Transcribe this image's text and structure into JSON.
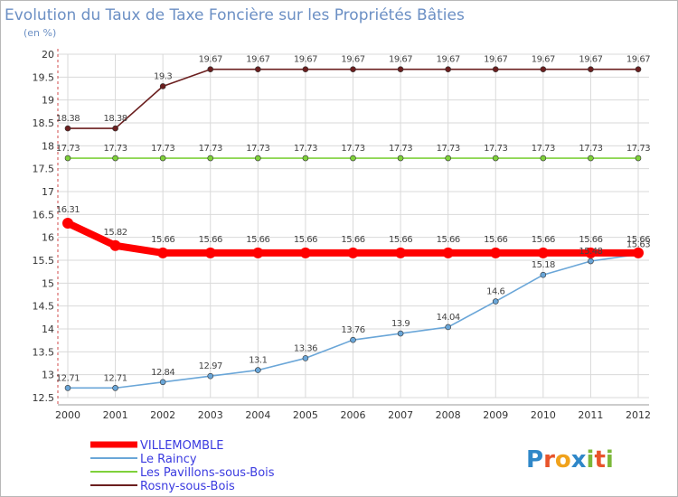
{
  "chart_data": {
    "type": "line",
    "title": "Evolution du Taux de Taxe Foncière sur les Propriétés Bâties",
    "unit_label": "(en %)",
    "ylim": [
      12.5,
      20
    ],
    "yticks": [
      "20",
      "19.5",
      "19",
      "18.5",
      "18",
      "17.5",
      "17",
      "16.5",
      "16",
      "15.5",
      "15",
      "14.5",
      "14",
      "13.5",
      "13",
      "12.5"
    ],
    "x": [
      "2000",
      "2001",
      "2002",
      "2003",
      "2004",
      "2005",
      "2006",
      "2007",
      "2008",
      "2009",
      "2010",
      "2011",
      "2012"
    ],
    "grid": true,
    "legend_position": "bottom-left",
    "series": [
      {
        "name": "Rosny-sous-Bois",
        "color": "#6b1f1f",
        "values": [
          18.38,
          18.38,
          19.3,
          19.67,
          19.67,
          19.67,
          19.67,
          19.67,
          19.67,
          19.67,
          19.67,
          19.67,
          19.67
        ],
        "labels": [
          "18.38",
          "18.38",
          "19.3",
          "19.67",
          "19.67",
          "19.67",
          "19.67",
          "19.67",
          "19.67",
          "19.67",
          "19.67",
          "19.67",
          "19.67"
        ]
      },
      {
        "name": "Les Pavillons-sous-Bois",
        "color": "#7fd13b",
        "values": [
          17.73,
          17.73,
          17.73,
          17.73,
          17.73,
          17.73,
          17.73,
          17.73,
          17.73,
          17.73,
          17.73,
          17.73,
          17.73
        ],
        "labels": [
          "17.73",
          "17.73",
          "17.73",
          "17.73",
          "17.73",
          "17.73",
          "17.73",
          "17.73",
          "17.73",
          "17.73",
          "17.73",
          "17.73",
          "17.73"
        ]
      },
      {
        "name": "Le Raincy",
        "color": "#6aa6d8",
        "values": [
          12.71,
          12.71,
          12.84,
          12.97,
          13.1,
          13.36,
          13.76,
          13.9,
          14.04,
          14.6,
          15.18,
          15.48,
          15.63
        ],
        "labels": [
          "12.71",
          "12.71",
          "12.84",
          "12.97",
          "13.1",
          "13.36",
          "13.76",
          "13.9",
          "14.04",
          "14.6",
          "15.18",
          "15.48",
          "15.63"
        ]
      },
      {
        "name": "VILLEMOMBLE",
        "color": "#ff0000",
        "values": [
          16.31,
          15.82,
          15.66,
          15.66,
          15.66,
          15.66,
          15.66,
          15.66,
          15.66,
          15.66,
          15.66,
          15.66,
          15.66
        ],
        "labels": [
          "16.31",
          "15.82",
          "15.66",
          "15.66",
          "15.66",
          "15.66",
          "15.66",
          "15.66",
          "15.66",
          "15.66",
          "15.66",
          "15.66",
          "15.66"
        ]
      }
    ],
    "legend": [
      "VILLEMOMBLE",
      "Le Raincy",
      "Les Pavillons-sous-Bois",
      "Rosny-sous-Bois"
    ]
  },
  "logo": {
    "letters": [
      "P",
      "r",
      "o",
      "x",
      "i",
      "t",
      "i"
    ],
    "colors": [
      "#2f87c8",
      "#e8542b",
      "#f0a21c",
      "#2f87c8",
      "#7cb83a",
      "#e8542b",
      "#7cb83a"
    ]
  }
}
